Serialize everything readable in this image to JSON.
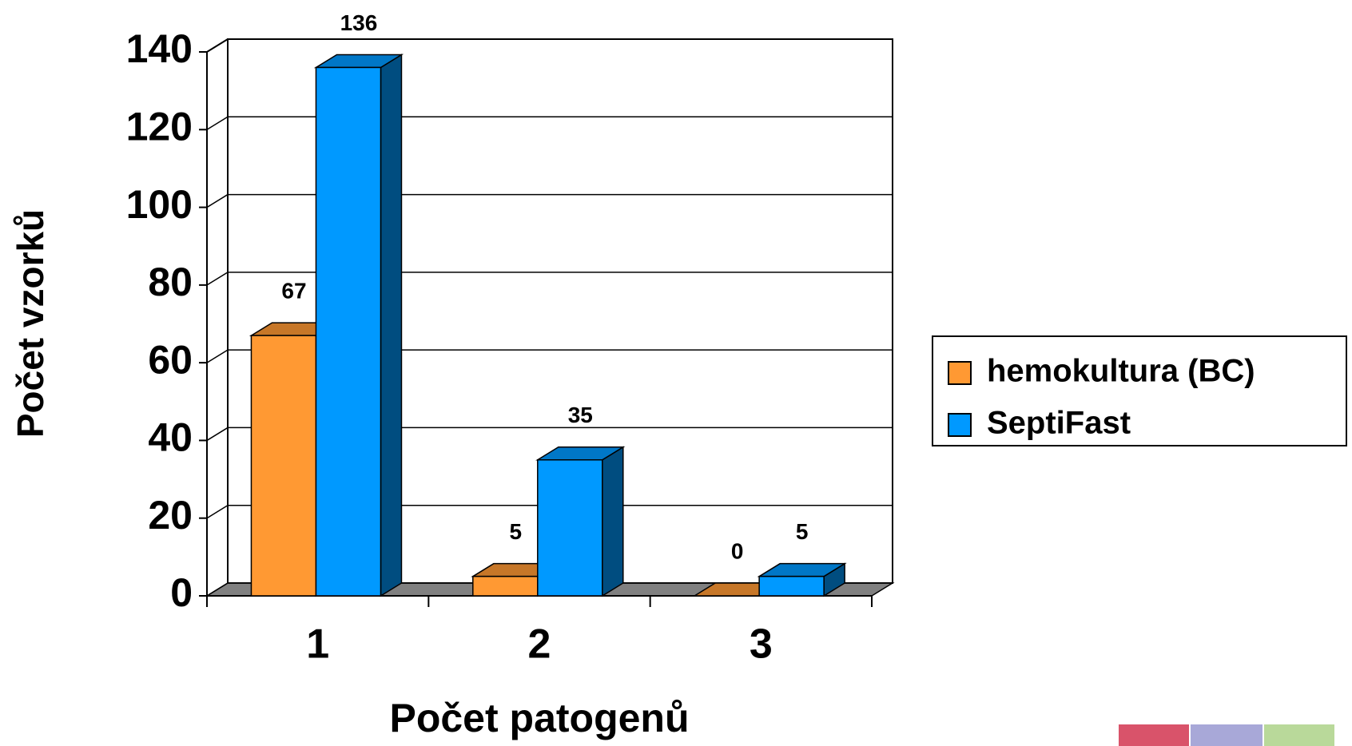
{
  "chart_data": {
    "type": "bar3d",
    "xlabel": "Počet patogenů",
    "ylabel": "Počet vzorků",
    "categories": [
      "1",
      "2",
      "3"
    ],
    "series": [
      {
        "name": "hemokultura (BC)",
        "color": "#ff9933",
        "values": [
          67,
          5,
          0
        ]
      },
      {
        "name": "SeptiFast",
        "color": "#0099ff",
        "values": [
          136,
          35,
          5
        ]
      }
    ],
    "ylim": [
      0,
      140
    ],
    "yticks": [
      0,
      20,
      40,
      60,
      80,
      100,
      120,
      140
    ],
    "grid": true,
    "legend": "right"
  }
}
